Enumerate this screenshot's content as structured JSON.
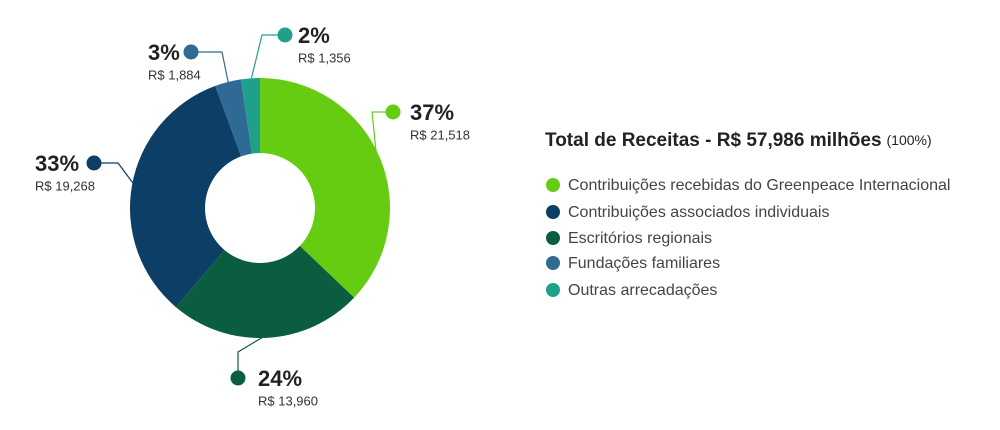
{
  "chart_data": {
    "type": "donut",
    "title": "Total de Receitas - R$ 57,986 milhões",
    "title_note": "(100%)",
    "categories": [
      "Contribuições recebidas do Greenpeace Internacional",
      "Contribuições associados individuais",
      "Escritórios regionais",
      "Fundações familiares",
      "Outras arrecadações"
    ],
    "values": [
      21518,
      19268,
      13960,
      1884,
      1356
    ],
    "value_labels": [
      "R$ 21,518",
      "R$ 19,268",
      "R$ 13,960",
      "R$ 1,884",
      "R$ 1,356"
    ],
    "percents": [
      37,
      33,
      24,
      3,
      2
    ],
    "percent_labels": [
      "37%",
      "33%",
      "24%",
      "3%",
      "2%"
    ],
    "colors": [
      "#66cc11",
      "#0d3f66",
      "#0a5e3f",
      "#2f6a94",
      "#1fa08a"
    ]
  }
}
